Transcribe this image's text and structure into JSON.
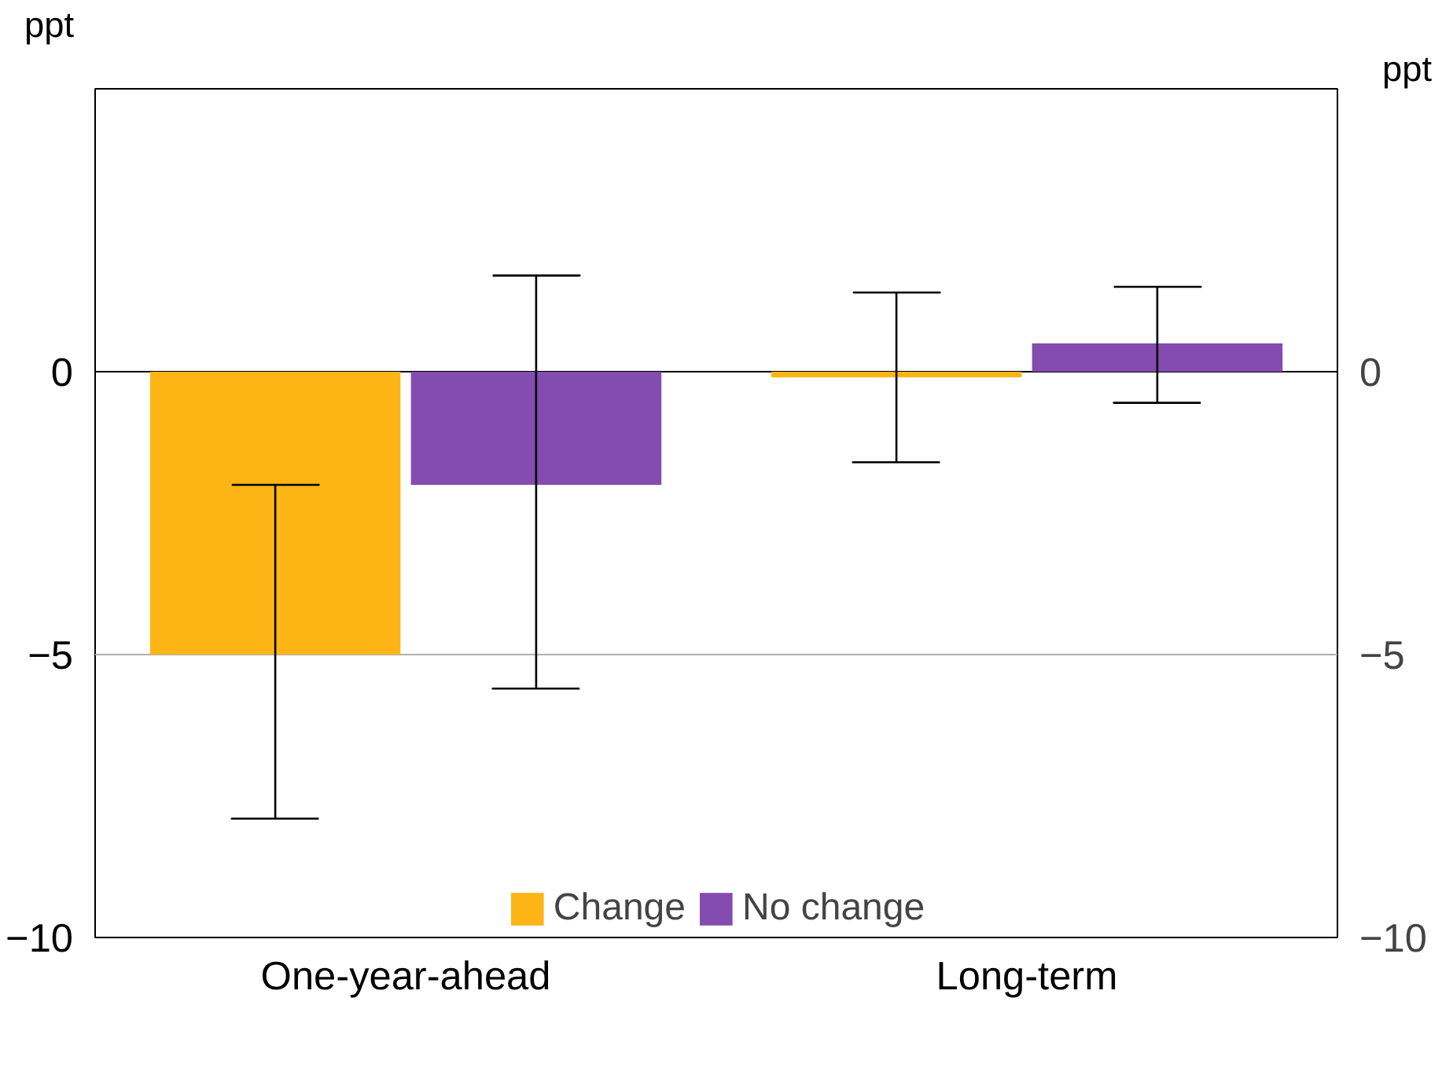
{
  "chart_data": {
    "type": "bar",
    "categories": [
      "One-year-ahead",
      "Long-term"
    ],
    "series": [
      {
        "name": "Change",
        "color": "#fdb515",
        "values": [
          -5.0,
          -0.1
        ],
        "errors": [
          [
            -7.9,
            -2.0
          ],
          [
            -1.6,
            1.4
          ]
        ]
      },
      {
        "name": "No change",
        "color": "#844bb0",
        "values": [
          -2.0,
          0.5
        ],
        "errors": [
          [
            -5.6,
            1.7
          ],
          [
            -0.55,
            1.5
          ]
        ]
      }
    ],
    "ylabel": "ppt",
    "y2label": "ppt",
    "ylim": [
      -10,
      5
    ],
    "yticks": [
      -10,
      -5,
      0
    ],
    "y2lim": [
      -10,
      5
    ],
    "y2ticks": [
      -10,
      -5,
      0
    ],
    "ref_lines": [
      {
        "axis": "y",
        "value": 0,
        "color": "#000000"
      },
      {
        "axis": "y",
        "value": -5,
        "color": "#b0b0b0"
      }
    ],
    "legend": "bottom"
  }
}
